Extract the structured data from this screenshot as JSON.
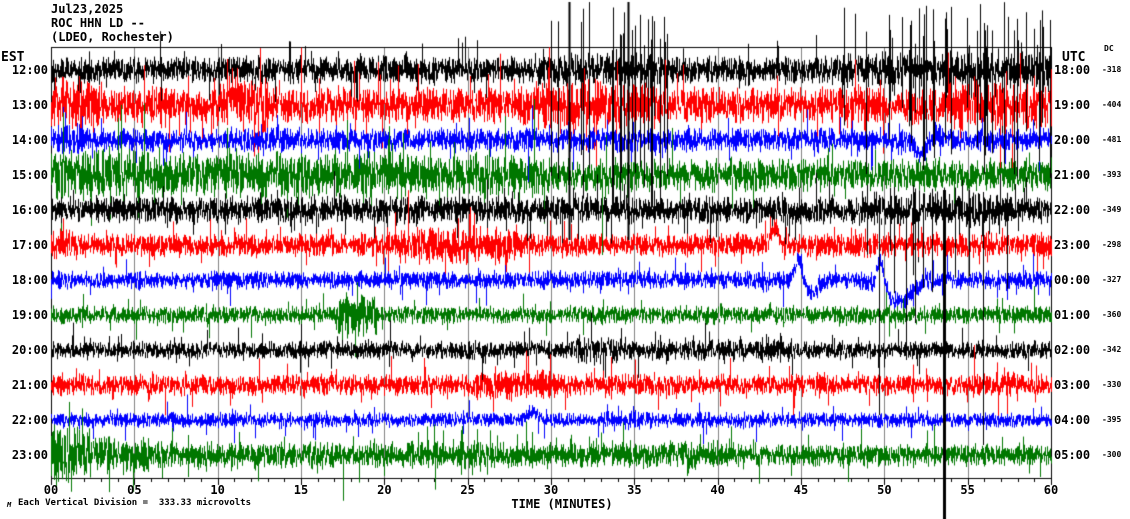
{
  "header": {
    "date": "Jul23,2025",
    "station": "ROC HHN LD --",
    "network": "(LDEO, Rochester)"
  },
  "left_axis": {
    "label": "EST"
  },
  "right_axis": {
    "label": "UTC",
    "dc_label": "DC"
  },
  "x_axis": {
    "label": "TIME (MINUTES)",
    "tick_labels": [
      "00",
      "05",
      "10",
      "15",
      "20",
      "25",
      "30",
      "35",
      "40",
      "45",
      "50",
      "55",
      "60"
    ]
  },
  "footer": {
    "scale_text": "Each Vertical Division =  333.33 microvolts",
    "watermark": "M"
  },
  "colors": {
    "black": "#000000",
    "red": "#ff0000",
    "blue": "#0000ff",
    "green": "#007700",
    "grid": "#808080"
  },
  "chart_data": {
    "type": "line",
    "subtype": "helicorder-seismogram",
    "title": "ROC HHN LD -- (LDEO, Rochester) Jul23,2025",
    "xlabel": "TIME (MINUTES)",
    "x_range": [
      0,
      60
    ],
    "x_major_tick_step": 5,
    "x_minor_tick_step": 1,
    "grid": "vertical-gray-every-5-min",
    "vertical_division_microvolts": 333.33,
    "trace_color_cycle": [
      "black",
      "red",
      "blue",
      "green"
    ],
    "rows": [
      {
        "est": "12:00",
        "utc": "18:00",
        "dc": "-318",
        "color": "black",
        "amp": 9,
        "seed": 101,
        "bursts": [
          [
            29,
            37,
            1.25
          ],
          [
            47,
            60,
            1.3
          ]
        ],
        "gauss": [],
        "spikes": [
          [
            31.1,
            68,
            170,
            2
          ],
          [
            34.6,
            68,
            170,
            2
          ],
          [
            10.2,
            26,
            10,
            1
          ]
        ],
        "clusters": [
          [
            29.5,
            37,
            22,
            68,
            150
          ],
          [
            47.5,
            60,
            42,
            68,
            110
          ],
          [
            2,
            28,
            7,
            24,
            32
          ],
          [
            38,
            47,
            5,
            30,
            20
          ]
        ]
      },
      {
        "est": "13:00",
        "utc": "19:00",
        "dc": "-404",
        "color": "red",
        "amp": 12,
        "seed": 202,
        "bursts": [
          [
            0,
            2.5,
            1.5
          ],
          [
            9.7,
            13,
            1.6
          ],
          [
            28,
            36,
            1.35
          ],
          [
            54,
            60,
            1.3
          ]
        ],
        "gauss": [
          [
            10.8,
            0.5,
            14
          ]
        ],
        "spikes": [
          [
            10.55,
            46,
            20,
            1
          ]
        ],
        "clusters": [
          [
            48,
            60,
            9,
            50,
            22
          ]
        ]
      },
      {
        "est": "14:00",
        "utc": "20:00",
        "dc": "-481",
        "color": "blue",
        "amp": 8,
        "seed": 303,
        "bursts": [
          [
            0,
            2,
            1.3
          ]
        ],
        "gauss": [
          [
            52.2,
            0.5,
            -16
          ],
          [
            53.0,
            0.8,
            6
          ]
        ],
        "spikes": [
          [
            28.6,
            8,
            42,
            1
          ],
          [
            31.3,
            6,
            30,
            1
          ]
        ],
        "clusters": []
      },
      {
        "est": "15:00",
        "utc": "21:00",
        "dc": "-393",
        "color": "green",
        "amp": 15,
        "seed": 404,
        "bursts": [
          [
            0,
            6,
            1.1
          ],
          [
            30,
            60,
            0.72
          ]
        ],
        "gauss": [],
        "spikes": [
          [
            33.05,
            10,
            80,
            1
          ],
          [
            18.7,
            8,
            28,
            1
          ]
        ],
        "clusters": []
      },
      {
        "est": "16:00",
        "utc": "22:00",
        "dc": "-349",
        "color": "black",
        "amp": 9,
        "seed": 505,
        "bursts": [
          [
            48,
            58,
            1.25
          ]
        ],
        "gauss": [],
        "spikes": [
          [
            53.6,
            20,
            309,
            3
          ],
          [
            49.7,
            15,
            205,
            1
          ],
          [
            55.9,
            18,
            235,
            1
          ],
          [
            51.3,
            12,
            150,
            1
          ]
        ],
        "clusters": [
          [
            48,
            58,
            14,
            26,
            120
          ],
          [
            2,
            46,
            9,
            16,
            40
          ]
        ]
      },
      {
        "est": "17:00",
        "utc": "23:00",
        "dc": "-298",
        "color": "red",
        "amp": 8,
        "seed": 606,
        "bursts": [
          [
            20,
            28,
            1.55
          ],
          [
            0,
            1.5,
            1.3
          ]
        ],
        "gauss": [
          [
            43.4,
            0.3,
            16
          ]
        ],
        "spikes": [
          [
            56.2,
            14,
            6,
            1
          ]
        ],
        "clusters": []
      },
      {
        "est": "18:00",
        "utc": "00:00",
        "dc": "-327",
        "color": "blue",
        "amp": 6,
        "seed": 707,
        "bursts": [
          [
            49,
            53,
            1.2
          ]
        ],
        "gauss": [
          [
            44.85,
            0.3,
            22
          ],
          [
            45.6,
            0.6,
            -12
          ],
          [
            49.75,
            0.3,
            27
          ],
          [
            50.8,
            1.1,
            -21
          ]
        ],
        "spikes": [],
        "clusters": []
      },
      {
        "est": "19:00",
        "utc": "01:00",
        "dc": "-360",
        "color": "green",
        "amp": 6,
        "seed": 808,
        "bursts": [
          [
            17,
            19.5,
            2.4
          ]
        ],
        "gauss": [],
        "spikes": [
          [
            53.3,
            12,
            5,
            1
          ]
        ],
        "clusters": []
      },
      {
        "est": "20:00",
        "utc": "02:00",
        "dc": "-342",
        "color": "black",
        "amp": 6,
        "seed": 909,
        "bursts": [
          [
            31.5,
            34.5,
            1.6
          ],
          [
            36,
            44,
            1.25
          ]
        ],
        "gauss": [],
        "spikes": [
          [
            4.2,
            16,
            8,
            1
          ]
        ],
        "clusters": []
      },
      {
        "est": "21:00",
        "utc": "03:00",
        "dc": "-330",
        "color": "red",
        "amp": 7,
        "seed": 1010,
        "bursts": [
          [
            25,
            31,
            1.35
          ],
          [
            55,
            58,
            1.2
          ]
        ],
        "gauss": [],
        "spikes": [
          [
            22.35,
            27,
            8,
            1
          ],
          [
            43.1,
            19,
            6,
            1
          ]
        ],
        "clusters": []
      },
      {
        "est": "22:00",
        "utc": "04:00",
        "dc": "-395",
        "color": "blue",
        "amp": 5,
        "seed": 1111,
        "bursts": [
          [
            33,
            36,
            1.3
          ]
        ],
        "gauss": [
          [
            28.85,
            0.4,
            9
          ]
        ],
        "spikes": [
          [
            58.9,
            12,
            4,
            1
          ]
        ],
        "clusters": []
      },
      {
        "est": "23:00",
        "utc": "05:00",
        "dc": "-300",
        "color": "green",
        "amp": 9,
        "seed": 1212,
        "bursts": [
          [
            0,
            2.5,
            2.1
          ],
          [
            2.5,
            6,
            1.4
          ],
          [
            40,
            60,
            0.85
          ]
        ],
        "gauss": [],
        "spikes": [
          [
            8.2,
            20,
            22,
            1
          ],
          [
            24.1,
            16,
            6,
            1
          ]
        ],
        "clusters": []
      }
    ]
  }
}
